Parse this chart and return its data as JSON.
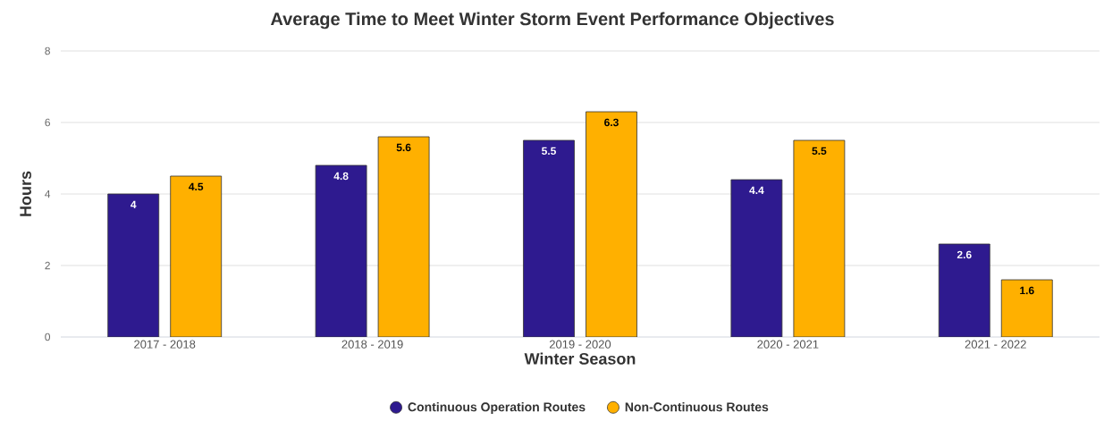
{
  "chart_data": {
    "type": "bar",
    "title": "Average Time to Meet Winter Storm Event Performance Objectives",
    "xlabel": "Winter Season",
    "ylabel": "Hours",
    "categories": [
      "2017 - 2018",
      "2018 - 2019",
      "2019 - 2020",
      "2020 - 2021",
      "2021 - 2022"
    ],
    "series": [
      {
        "name": "Continuous Operation Routes",
        "color": "#2e1a8f",
        "values": [
          4,
          4.8,
          5.5,
          4.4,
          2.6
        ]
      },
      {
        "name": "Non-Continuous Routes",
        "color": "#ffb000",
        "values": [
          4.5,
          5.6,
          6.3,
          5.5,
          1.6
        ]
      }
    ],
    "ylim": [
      0,
      8
    ],
    "yticks": [
      0,
      2,
      4,
      6,
      8
    ],
    "grid": "y",
    "legend": "bottom",
    "data_labels": true
  }
}
